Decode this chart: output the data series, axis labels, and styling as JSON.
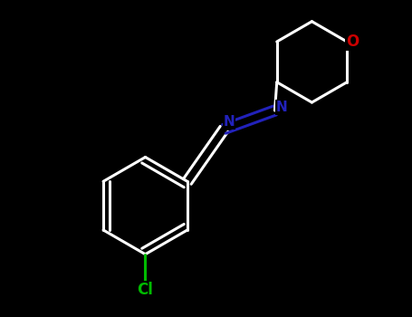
{
  "background_color": "#000000",
  "bond_color": "#ffffff",
  "nitrogen_color": "#2222bb",
  "oxygen_color": "#cc0000",
  "chlorine_color": "#00bb00",
  "bond_width": 2.2,
  "figsize": [
    4.55,
    3.5
  ],
  "dpi": 100,
  "xlim": [
    -2.8,
    2.8
  ],
  "ylim": [
    -2.5,
    2.2
  ]
}
